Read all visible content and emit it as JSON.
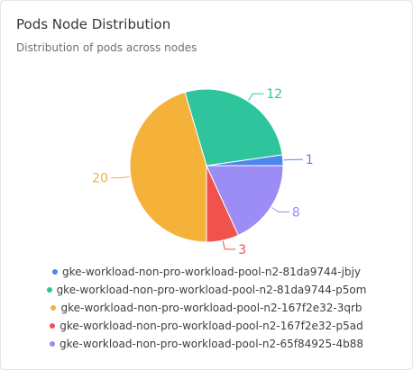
{
  "card": {
    "title": "Pods Node Distribution",
    "subtitle": "Distribution of pods across nodes"
  },
  "chart_data": {
    "type": "pie",
    "title": "Pods Node Distribution",
    "subtitle": "Distribution of pods across nodes",
    "categories": [
      "gke-workload-non-pro-workload-pool-n2-81da9744-jbjy",
      "gke-workload-non-pro-workload-pool-n2-81da9744-p5om",
      "gke-workload-non-pro-workload-pool-n2-167f2e32-3qrb",
      "gke-workload-non-pro-workload-pool-n2-167f2e32-p5ad",
      "gke-workload-non-pro-workload-pool-n2-65f84925-4b88"
    ],
    "values": [
      1,
      12,
      20,
      3,
      8
    ],
    "colors": [
      "#4e86f0",
      "#2ec49c",
      "#f4b23b",
      "#f0524e",
      "#9b8cf6"
    ],
    "legend_position": "bottom"
  }
}
